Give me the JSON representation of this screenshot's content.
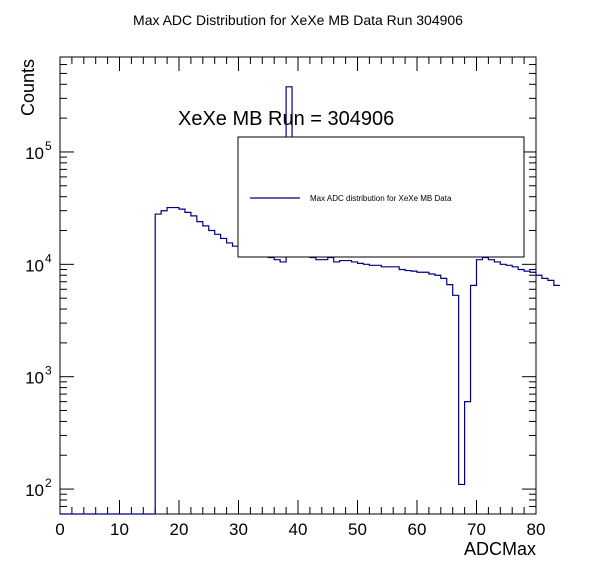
{
  "chart_data": {
    "type": "bar",
    "title": "Max ADC Distribution for XeXe MB Data Run 304906",
    "xlabel": "ADCMax",
    "ylabel": "Counts",
    "xlim": [
      0,
      80
    ],
    "ylim": [
      60,
      700000
    ],
    "yscale": "log",
    "x_tick_labels": [
      "0",
      "10",
      "20",
      "30",
      "40",
      "50",
      "60",
      "70",
      "80"
    ],
    "y_tick_labels": [
      {
        "base": "10",
        "exp": "2",
        "value": 100
      },
      {
        "base": "10",
        "exp": "3",
        "value": 1000
      },
      {
        "base": "10",
        "exp": "4",
        "value": 10000
      },
      {
        "base": "10",
        "exp": "5",
        "value": 100000
      }
    ],
    "annotation": "XeXe MB Run = 304906",
    "legend": {
      "placement": "top-right",
      "entries": [
        "Max ADC distribution for XeXe MB Data"
      ]
    },
    "series_color": "#00007f",
    "bin_width": 1,
    "bin_edges_start": 0,
    "values": [
      0,
      0,
      0,
      0,
      0,
      0,
      0,
      0,
      0,
      0,
      0,
      0,
      0,
      0,
      0,
      0,
      28000,
      30000,
      32000,
      32000,
      31000,
      29000,
      27000,
      24000,
      22000,
      20000,
      18500,
      17000,
      15500,
      14500,
      13500,
      12500,
      12500,
      12000,
      12500,
      11500,
      11000,
      10500,
      380000,
      14000,
      13000,
      12000,
      11500,
      11000,
      11000,
      11500,
      10500,
      10800,
      10800,
      10500,
      10200,
      10000,
      9800,
      9800,
      9500,
      9500,
      9500,
      9000,
      8800,
      8700,
      8500,
      8500,
      8200,
      8000,
      7500,
      6600,
      5300,
      110,
      600,
      6500,
      11000,
      11500,
      11000,
      10500,
      10000,
      9800,
      9500,
      9000,
      8700,
      8500,
      8000,
      7500,
      7200,
      6500
    ]
  }
}
